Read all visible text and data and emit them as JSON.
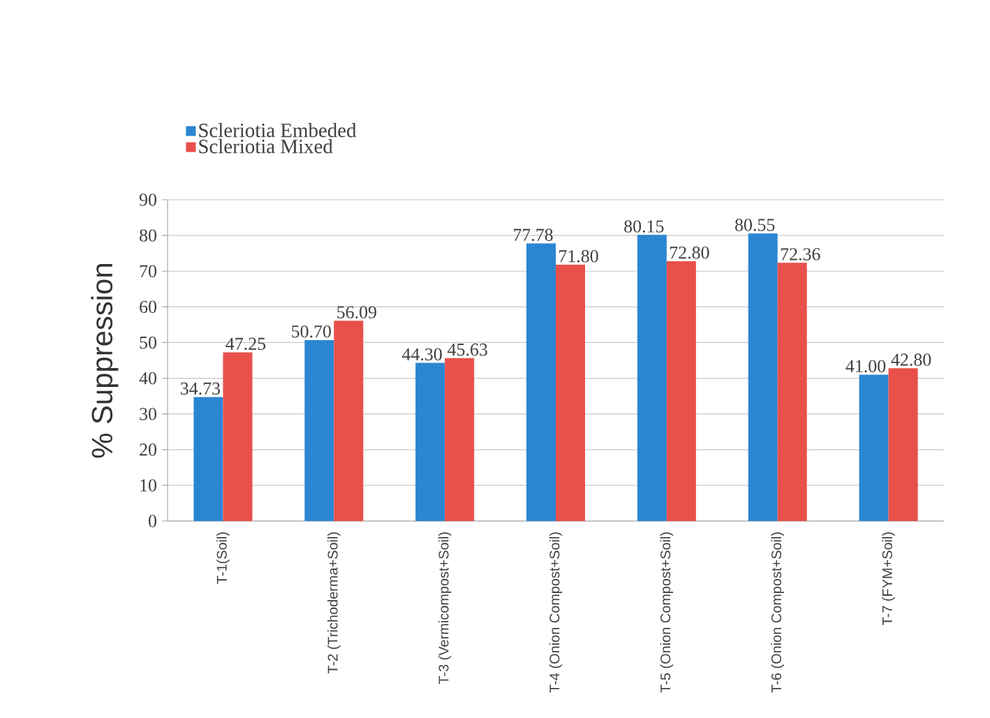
{
  "chart_data": {
    "type": "bar",
    "ylabel": "% Suppression",
    "categories": [
      "T-1(Soil)",
      "T-2 (Trichoderma+Soil)",
      "T-3 (Vermicompost+Soil)",
      "T-4 (Onion Compost+Soil)",
      "T-5 (Onion Compost+Soil)",
      "T-6 (Onion Compost+Soil)",
      "T-7 (FYM+Soil)"
    ],
    "series": [
      {
        "name": "Scleriotia Embeded",
        "color": "#2b86d2",
        "values": [
          34.73,
          50.7,
          44.3,
          77.78,
          80.15,
          80.55,
          41.0
        ],
        "value_labels": [
          "34.73",
          "50.70",
          "44.30",
          "77.78",
          "80.15",
          "80.55",
          "41.00"
        ]
      },
      {
        "name": "Scleriotia Mixed",
        "color": "#e9504a",
        "values": [
          47.25,
          56.09,
          45.63,
          71.8,
          72.8,
          72.36,
          42.8
        ],
        "value_labels": [
          "47.25",
          "56.09",
          "45.63",
          "71.80",
          "72.80",
          "72.36",
          "42.80"
        ]
      }
    ],
    "ylim": [
      0,
      90
    ],
    "yticks": [
      0,
      10,
      20,
      30,
      40,
      50,
      60,
      70,
      80,
      90
    ],
    "grid": "y",
    "legend": "top left"
  }
}
